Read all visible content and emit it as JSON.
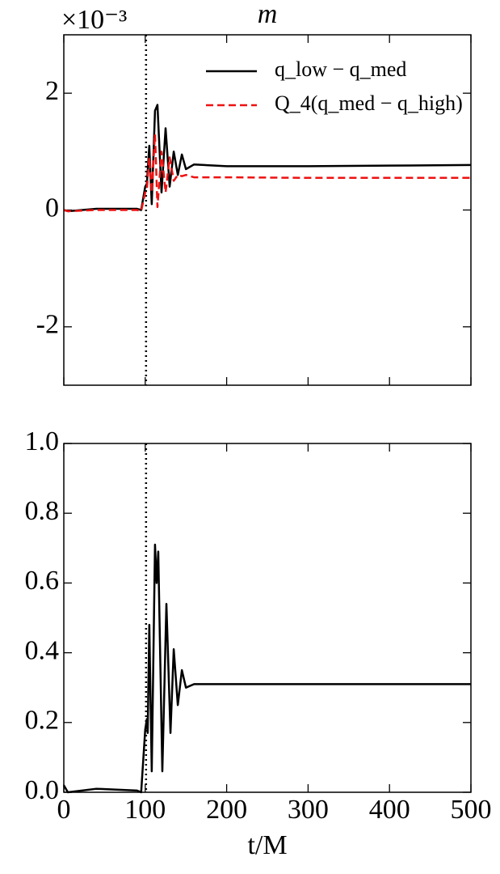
{
  "chart_data": [
    {
      "type": "line",
      "title": "m",
      "offset_label": "×10⁻³",
      "x": [
        0,
        5,
        40,
        90,
        95,
        100,
        102,
        105,
        108,
        112,
        115,
        120,
        125,
        130,
        135,
        140,
        145,
        150,
        160,
        200,
        300,
        400,
        500
      ],
      "series": [
        {
          "name": "q_low − q_med",
          "color": "#000000",
          "dash": "solid",
          "values": [
            0.0,
            -0.02,
            0.02,
            0.02,
            0.0,
            0.4,
            0.45,
            1.1,
            0.1,
            1.7,
            1.8,
            0.3,
            1.4,
            0.4,
            1.0,
            0.6,
            0.95,
            0.7,
            0.78,
            0.75,
            0.75,
            0.76,
            0.77
          ]
        },
        {
          "name": "Q_4(q_med − q_high)",
          "color": "#ee1111",
          "dash": "dashed",
          "values": [
            0.0,
            -0.02,
            0.0,
            0.0,
            -0.02,
            0.3,
            0.35,
            0.9,
            0.3,
            1.3,
            0.05,
            1.0,
            0.3,
            0.9,
            0.5,
            0.6,
            0.58,
            0.6,
            0.56,
            0.56,
            0.55,
            0.55,
            0.55
          ]
        }
      ],
      "xlim": [
        0,
        500
      ],
      "xticks": [
        0,
        100,
        200,
        300,
        400,
        500
      ],
      "ylim": [
        -3,
        3
      ],
      "yticks": [
        -2,
        0,
        2
      ],
      "vlines": [
        101
      ],
      "legend": "upper right"
    },
    {
      "type": "line",
      "xlabel": "t/M",
      "x": [
        0,
        5,
        40,
        90,
        95,
        100,
        102,
        103,
        105,
        108,
        112,
        114,
        116,
        121,
        126,
        131,
        135,
        140,
        145,
        150,
        160,
        200,
        300,
        400,
        500
      ],
      "series": [
        {
          "color": "#000000",
          "dash": "solid",
          "values": [
            0.02,
            0.0,
            0.01,
            0.005,
            0.0,
            0.18,
            0.21,
            0.17,
            0.48,
            0.06,
            0.71,
            0.6,
            0.69,
            0.06,
            0.54,
            0.17,
            0.41,
            0.25,
            0.35,
            0.3,
            0.31,
            0.31,
            0.31,
            0.31,
            0.31
          ]
        }
      ],
      "xlim": [
        0,
        500
      ],
      "xticks": [
        0,
        100,
        200,
        300,
        400,
        500
      ],
      "ylim": [
        0,
        1
      ],
      "yticks": [
        {
          "value": 0,
          "label": "0.0"
        },
        {
          "value": 0.2,
          "label": "0.2"
        },
        {
          "value": 0.4,
          "label": "0.4"
        },
        {
          "value": 0.6,
          "label": "0.6"
        },
        {
          "value": 0.8,
          "label": "0.8"
        },
        {
          "value": 1,
          "label": "1.0"
        }
      ],
      "vlines": [
        101
      ]
    }
  ]
}
